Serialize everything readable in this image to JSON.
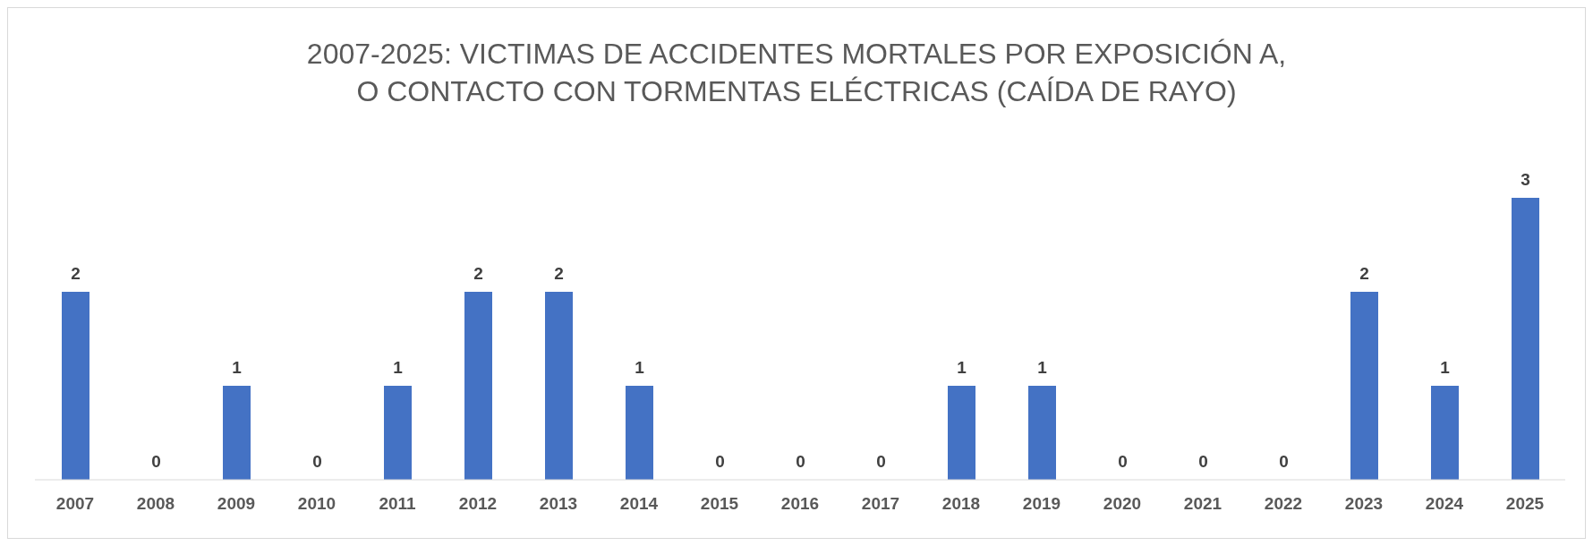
{
  "chart_data": {
    "type": "bar",
    "title": "2007-2025: VICTIMAS DE ACCIDENTES MORTALES POR EXPOSICIÓN A, O CONTACTO CON TORMENTAS ELÉCTRICAS (CAÍDA DE RAYO)",
    "categories": [
      "2007",
      "2008",
      "2009",
      "2010",
      "2011",
      "2012",
      "2013",
      "2014",
      "2015",
      "2016",
      "2017",
      "2018",
      "2019",
      "2020",
      "2021",
      "2022",
      "2023",
      "2024",
      "2025"
    ],
    "values": [
      2,
      0,
      1,
      0,
      1,
      2,
      2,
      1,
      0,
      0,
      0,
      1,
      1,
      0,
      0,
      0,
      2,
      1,
      3
    ],
    "color": "#4472c4",
    "data_labels": true,
    "grid": false,
    "legend": false,
    "tick_labels": "x"
  }
}
